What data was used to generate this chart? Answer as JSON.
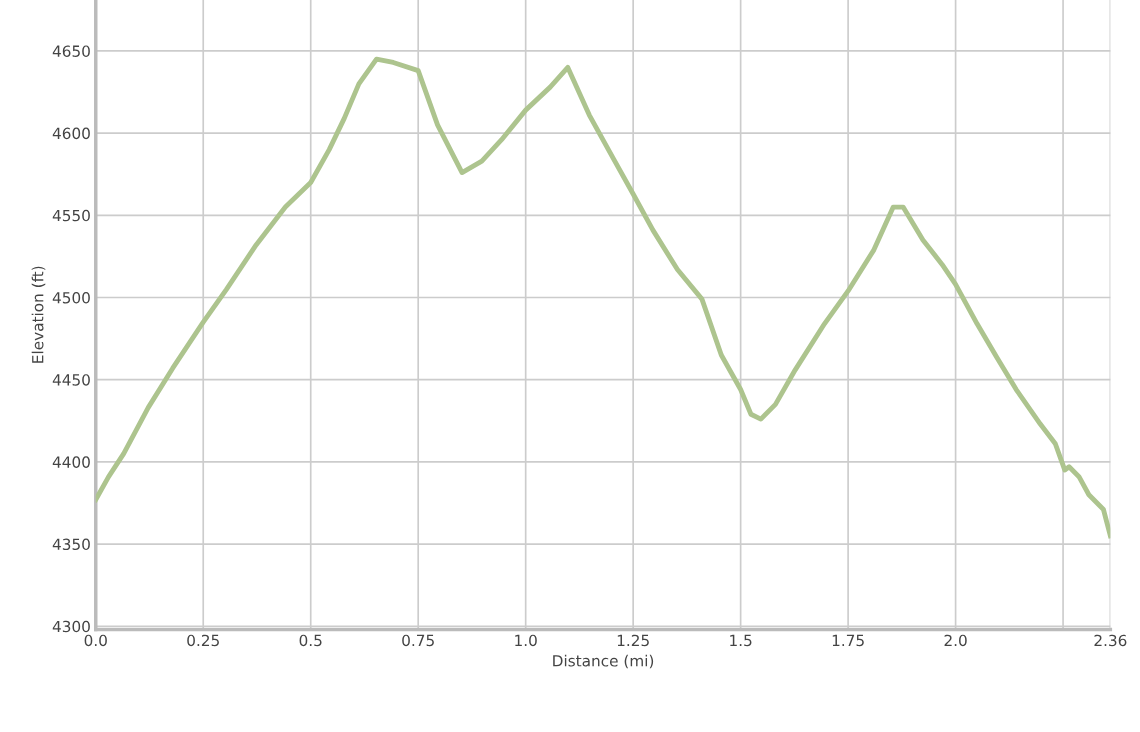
{
  "chart_data": {
    "type": "line",
    "xlabel": "Distance (mi)",
    "ylabel": "Elevation (ft)",
    "x": [
      0,
      0.03,
      0.065,
      0.122,
      0.179,
      0.25,
      0.304,
      0.373,
      0.441,
      0.5,
      0.543,
      0.578,
      0.612,
      0.653,
      0.692,
      0.75,
      0.795,
      0.852,
      0.898,
      0.944,
      1.0,
      1.057,
      1.098,
      1.148,
      1.205,
      1.25,
      1.296,
      1.353,
      1.41,
      1.455,
      1.5,
      1.524,
      1.547,
      1.581,
      1.627,
      1.695,
      1.75,
      1.81,
      1.855,
      1.878,
      1.924,
      1.969,
      2.0,
      2.05,
      2.095,
      2.141,
      2.197,
      2.232,
      2.254,
      2.264,
      2.287,
      2.31,
      2.344,
      2.36
    ],
    "series": [
      {
        "color": "#adc48e",
        "values": [
          4377,
          4391,
          4405,
          4433,
          4457,
          4485,
          4505,
          4532,
          4555,
          4570,
          4590,
          4609,
          4630,
          4645,
          4643,
          4638,
          4605,
          4576,
          4583,
          4596,
          4614,
          4628,
          4640,
          4611,
          4584,
          4563,
          4541,
          4517,
          4499,
          4465,
          4444,
          4429,
          4426,
          4435,
          4456,
          4484,
          4504,
          4529,
          4555,
          4555,
          4535,
          4520,
          4508,
          4484,
          4464,
          4444,
          4423,
          4411,
          4395,
          4397,
          4391,
          4380,
          4371,
          4355
        ]
      }
    ],
    "xlim": [
      0,
      2.36
    ],
    "ylim": [
      4298,
      4681
    ],
    "xticks": [
      {
        "value": 0,
        "label": "0.0"
      },
      0.25,
      0.5,
      0.75,
      {
        "value": 1.0,
        "label": "1.0"
      },
      1.25,
      1.5,
      1.75,
      {
        "value": 2.0,
        "label": "2.0"
      },
      {
        "value": 2.25,
        "label": null
      },
      2.36
    ],
    "yticks": [
      4300,
      4350,
      4400,
      4450,
      4500,
      4550,
      4600,
      4650
    ],
    "grid": true,
    "marker": "none",
    "line_style": "solid",
    "legend": false
  }
}
